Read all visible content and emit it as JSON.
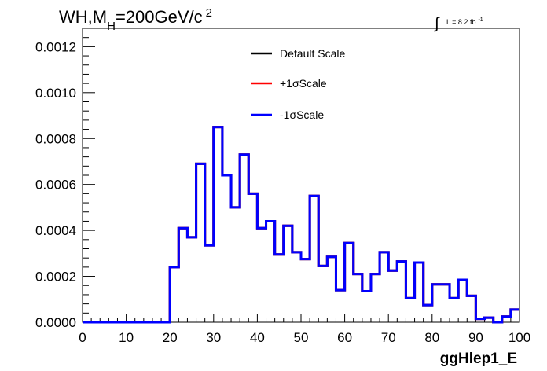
{
  "chart_data": {
    "type": "line",
    "title": {
      "prefix": "WH,M",
      "subscript": "H",
      "rest": "=200GeV/c",
      "superscript": "2"
    },
    "lumi": {
      "integral_glyph": "∫",
      "text": "L = 8.2 fb",
      "superscript": "-1"
    },
    "xlabel": "ggHlep1_E",
    "ylabel": "",
    "xlim": [
      0,
      100
    ],
    "ylim": [
      0,
      0.00128
    ],
    "x_ticks": [
      0,
      10,
      20,
      30,
      40,
      50,
      60,
      70,
      80,
      90,
      100
    ],
    "x_tick_labels": [
      "0",
      "10",
      "20",
      "30",
      "40",
      "50",
      "60",
      "70",
      "80",
      "90",
      "100"
    ],
    "y_ticks": [
      0,
      0.0002,
      0.0004,
      0.0006,
      0.0008,
      0.001,
      0.0012
    ],
    "y_tick_labels": [
      "0.0000",
      "0.0002",
      "0.0004",
      "0.0006",
      "0.0008",
      "0.0010",
      "0.0012"
    ],
    "bin_edges": [
      0,
      2,
      4,
      6,
      8,
      10,
      12,
      14,
      16,
      18,
      20,
      22,
      24,
      26,
      28,
      30,
      32,
      34,
      36,
      38,
      40,
      42,
      44,
      46,
      48,
      50,
      52,
      54,
      56,
      58,
      60,
      62,
      64,
      66,
      68,
      70,
      72,
      74,
      76,
      78,
      80,
      82,
      84,
      86,
      88,
      90,
      92,
      94,
      96,
      98,
      100
    ],
    "legend_position": "top-center",
    "grid": false,
    "series": [
      {
        "name": "Default Scale",
        "color": "#000000",
        "values": [
          0,
          0,
          0,
          0,
          0,
          0,
          0,
          0,
          0,
          0,
          0.00024,
          0.00041,
          0.00037,
          0.00069,
          0.000335,
          0.00085,
          0.00064,
          0.0005,
          0.00073,
          0.00056,
          0.00041,
          0.00044,
          0.000295,
          0.00042,
          0.000305,
          0.000275,
          0.00055,
          0.000245,
          0.000285,
          0.00014,
          0.000345,
          0.00021,
          0.000135,
          0.00021,
          0.000305,
          0.000225,
          0.000265,
          0.000105,
          0.00026,
          7.5e-05,
          0.000165,
          0.000165,
          0.000105,
          0.000185,
          0.000115,
          1.5e-05,
          2e-05,
          0,
          2.5e-05,
          5.5e-05
        ]
      },
      {
        "name": "+1σScale",
        "color": "#ff0000",
        "values": [
          0,
          0,
          0,
          0,
          0,
          0,
          0,
          0,
          0,
          0,
          0.00024,
          0.00041,
          0.00037,
          0.00069,
          0.000335,
          0.00085,
          0.00064,
          0.0005,
          0.00073,
          0.00056,
          0.00041,
          0.00044,
          0.000295,
          0.00042,
          0.000305,
          0.000275,
          0.00055,
          0.000245,
          0.000285,
          0.00014,
          0.000345,
          0.00021,
          0.000135,
          0.00021,
          0.000305,
          0.000225,
          0.000265,
          0.000105,
          0.00026,
          7.5e-05,
          0.000165,
          0.000165,
          0.000105,
          0.000185,
          0.000115,
          1.5e-05,
          2e-05,
          0,
          2.5e-05,
          5.5e-05
        ]
      },
      {
        "name": "-1σScale",
        "color": "#0000ff",
        "values": [
          0,
          0,
          0,
          0,
          0,
          0,
          0,
          0,
          0,
          0,
          0.00024,
          0.00041,
          0.00037,
          0.00069,
          0.000335,
          0.00085,
          0.00064,
          0.0005,
          0.00073,
          0.00056,
          0.00041,
          0.00044,
          0.000295,
          0.00042,
          0.000305,
          0.000275,
          0.00055,
          0.000245,
          0.000285,
          0.00014,
          0.000345,
          0.00021,
          0.000135,
          0.00021,
          0.000305,
          0.000225,
          0.000265,
          0.000105,
          0.00026,
          7.5e-05,
          0.000165,
          0.000165,
          0.000105,
          0.000185,
          0.000115,
          1.5e-05,
          2e-05,
          0,
          2.5e-05,
          5.5e-05
        ]
      }
    ]
  }
}
